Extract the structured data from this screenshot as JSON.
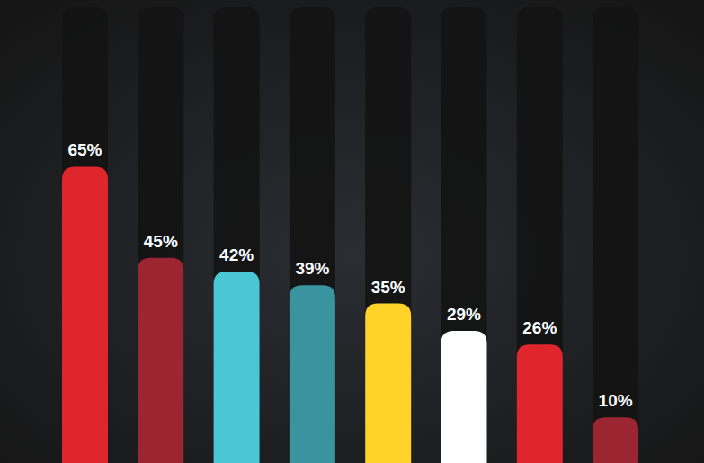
{
  "chart_data": {
    "type": "bar",
    "categories": [
      null,
      null,
      null,
      null,
      null,
      null,
      null,
      null
    ],
    "values": [
      65,
      45,
      42,
      39,
      35,
      29,
      26,
      10
    ],
    "value_labels": [
      "65%",
      "45%",
      "42%",
      "39%",
      "35%",
      "29%",
      "26%",
      "10%"
    ],
    "colors": [
      "#df262d",
      "#9b2530",
      "#4bc6d4",
      "#3a949f",
      "#fdd32a",
      "#ffffff",
      "#df262d",
      "#9b2530"
    ],
    "ylim": [
      0,
      100
    ],
    "data_labels": true,
    "tick_labels": false,
    "grid": false
  }
}
